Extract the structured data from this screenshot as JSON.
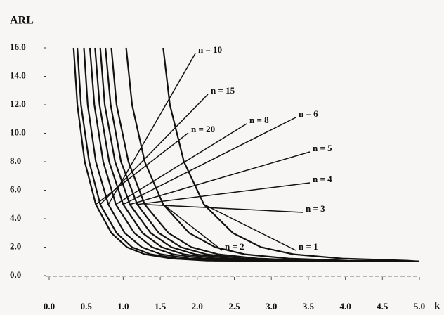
{
  "chart_data": {
    "type": "line",
    "y_label": "ARL",
    "x_label": "k",
    "xlim": [
      0,
      5.0
    ],
    "ylim": [
      0,
      16
    ],
    "xticks": [
      {
        "value": 0,
        "label": "0.0"
      },
      {
        "value": 0.5,
        "label": "0.5"
      },
      {
        "value": 1,
        "label": "1.0"
      },
      {
        "value": 1.5,
        "label": "1.5"
      },
      {
        "value": 2,
        "label": "2.0"
      },
      {
        "value": 2.5,
        "label": "2.5"
      },
      {
        "value": 3,
        "label": "3.0"
      },
      {
        "value": 3.5,
        "label": "3.5"
      },
      {
        "value": 4,
        "label": "4.0"
      },
      {
        "value": 4.5,
        "label": "4.5"
      },
      {
        "value": 5,
        "label": "5.0"
      }
    ],
    "yticks": [
      {
        "value": 0,
        "label": "0.0"
      },
      {
        "value": 2,
        "label": "2.0"
      },
      {
        "value": 4,
        "label": "4.0"
      },
      {
        "value": 6,
        "label": "6.0"
      },
      {
        "value": 8,
        "label": "8.0"
      },
      {
        "value": 10,
        "label": "10.0"
      },
      {
        "value": 12,
        "label": "12.0"
      },
      {
        "value": 14,
        "label": "14.0"
      },
      {
        "value": 16,
        "label": "16.0"
      }
    ],
    "series": [
      {
        "name": "n = 20",
        "color": "#111111",
        "x": [
          0.33,
          0.38,
          0.48,
          0.63,
          0.84,
          1.05,
          1.29,
          1.65,
          2.13,
          5.0
        ],
        "values": [
          16,
          12,
          8,
          5,
          3,
          2,
          1.5,
          1.2,
          1.05,
          1.0
        ]
      },
      {
        "name": "n = 15",
        "color": "#111111",
        "x": [
          0.38,
          0.43,
          0.54,
          0.69,
          0.91,
          1.12,
          1.37,
          1.74,
          2.24,
          5.0
        ],
        "values": [
          16,
          12,
          8,
          5,
          3,
          2,
          1.5,
          1.2,
          1.05,
          1.0
        ]
      },
      {
        "name": "n = 10",
        "color": "#111111",
        "x": [
          0.47,
          0.52,
          0.63,
          0.8,
          1.02,
          1.25,
          1.51,
          1.9,
          2.42,
          5.0
        ],
        "values": [
          16,
          12,
          8,
          5,
          3,
          2,
          1.5,
          1.2,
          1.05,
          1.0
        ]
      },
      {
        "name": "n = 8",
        "color": "#111111",
        "x": [
          0.55,
          0.61,
          0.73,
          0.9,
          1.15,
          1.39,
          1.67,
          2.09,
          2.65,
          5.0
        ],
        "values": [
          16,
          12,
          8,
          5,
          3,
          2,
          1.5,
          1.2,
          1.05,
          1.0
        ]
      },
      {
        "name": "n = 6",
        "color": "#111111",
        "x": [
          0.62,
          0.68,
          0.81,
          1.0,
          1.26,
          1.52,
          1.82,
          2.27,
          2.87,
          5.0
        ],
        "values": [
          16,
          12,
          8,
          5,
          3,
          2,
          1.5,
          1.2,
          1.05,
          1.0
        ]
      },
      {
        "name": "n = 5",
        "color": "#111111",
        "x": [
          0.69,
          0.75,
          0.89,
          1.09,
          1.37,
          1.65,
          1.97,
          2.45,
          3.09,
          5.0
        ],
        "values": [
          16,
          12,
          8,
          5,
          3,
          2,
          1.5,
          1.2,
          1.05,
          1.0
        ]
      },
      {
        "name": "n = 4",
        "color": "#111111",
        "x": [
          0.76,
          0.83,
          0.97,
          1.19,
          1.48,
          1.78,
          2.12,
          2.63,
          3.31,
          5.0
        ],
        "values": [
          16,
          12,
          8,
          5,
          3,
          2,
          1.5,
          1.2,
          1.05,
          1.0
        ]
      },
      {
        "name": "n = 3",
        "color": "#111111",
        "x": [
          0.84,
          0.91,
          1.07,
          1.29,
          1.61,
          1.92,
          2.28,
          2.82,
          3.54,
          5.0
        ],
        "values": [
          16,
          12,
          8,
          5,
          3,
          2,
          1.5,
          1.2,
          1.05,
          1.0
        ]
      },
      {
        "name": "n = 2",
        "color": "#111111",
        "x": [
          1.04,
          1.12,
          1.29,
          1.54,
          1.89,
          2.24,
          2.64,
          3.24,
          4.04,
          5.0
        ],
        "values": [
          16,
          12,
          8,
          5,
          3,
          2,
          1.5,
          1.2,
          1.05,
          1.0
        ]
      },
      {
        "name": "n = 1",
        "color": "#111111",
        "x": [
          1.54,
          1.63,
          1.82,
          2.09,
          2.48,
          2.86,
          3.3,
          3.96,
          4.84,
          5.0
        ],
        "values": [
          16,
          12,
          8,
          5,
          3,
          2,
          1.5,
          1.2,
          1.05,
          1.0
        ]
      }
    ]
  }
}
